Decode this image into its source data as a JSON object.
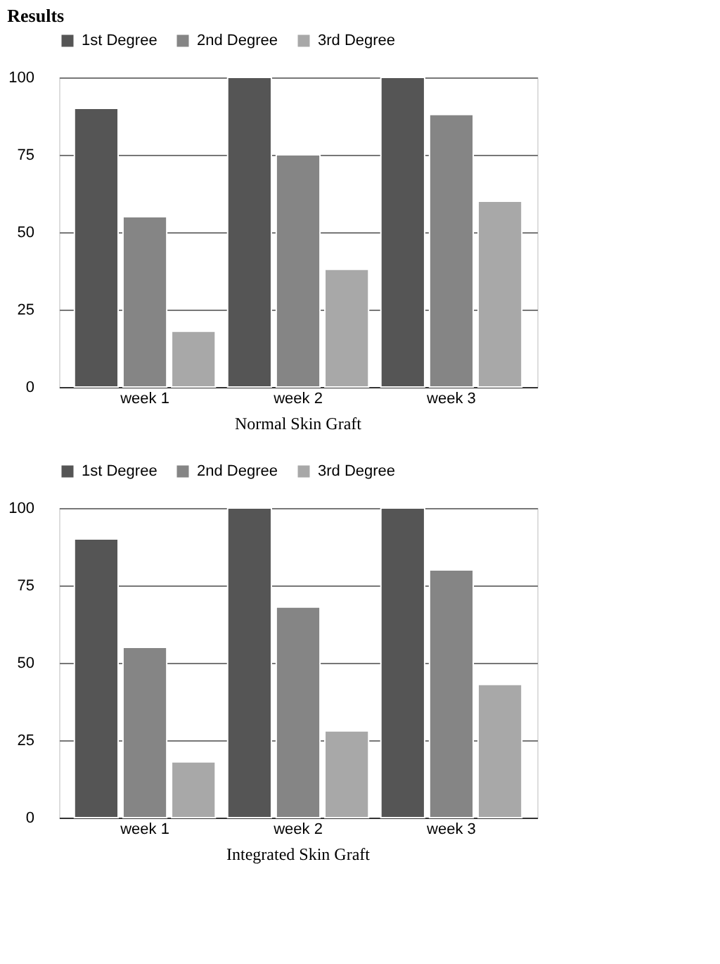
{
  "chart_data": [
    {
      "type": "bar",
      "title": "Normal Skin Graft",
      "annotations": [
        "Results"
      ],
      "categories": [
        "week 1",
        "week 2",
        "week 3"
      ],
      "series": [
        {
          "name": "1st Degree",
          "color": "#555555",
          "values": [
            90,
            100,
            100
          ]
        },
        {
          "name": "2nd Degree",
          "color": "#858585",
          "values": [
            55,
            75,
            88
          ]
        },
        {
          "name": "3rd Degree",
          "color": "#a8a8a8",
          "values": [
            18,
            38,
            60
          ]
        }
      ],
      "ylim": [
        0,
        100
      ],
      "yticks": [
        0,
        25,
        50,
        75,
        100
      ],
      "grid": "y",
      "legend": "top"
    },
    {
      "type": "bar",
      "title": "Integrated Skin Graft",
      "categories": [
        "week 1",
        "week 2",
        "week 3"
      ],
      "series": [
        {
          "name": "1st Degree",
          "color": "#555555",
          "values": [
            90,
            100,
            100
          ]
        },
        {
          "name": "2nd Degree",
          "color": "#858585",
          "values": [
            55,
            68,
            80
          ]
        },
        {
          "name": "3rd Degree",
          "color": "#a8a8a8",
          "values": [
            18,
            28,
            43
          ]
        }
      ],
      "ylim": [
        0,
        100
      ],
      "yticks": [
        0,
        25,
        50,
        75,
        100
      ],
      "grid": "y",
      "legend": "top"
    }
  ]
}
